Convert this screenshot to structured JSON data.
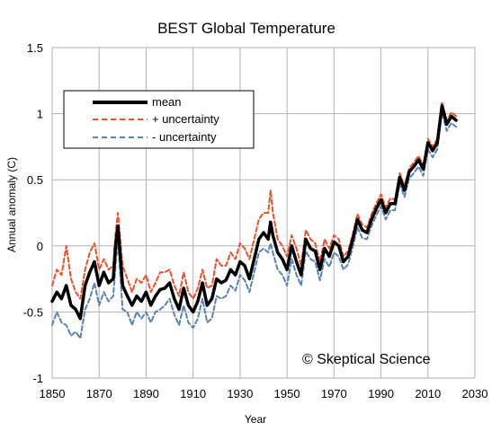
{
  "chart_data": {
    "type": "line",
    "title": "BEST Global Temperature",
    "xlabel": "Year",
    "ylabel": "Annual anomaly (C)",
    "xlim": [
      1850,
      2030
    ],
    "ylim": [
      -1,
      1.5
    ],
    "xticks": [
      1850,
      1870,
      1890,
      1910,
      1930,
      1950,
      1970,
      1990,
      2010,
      2030
    ],
    "yticks": [
      -1,
      -0.5,
      0,
      0.5,
      1,
      1.5
    ],
    "xtick_labels": [
      "1850",
      "1870",
      "1890",
      "1910",
      "1930",
      "1950",
      "1970",
      "1990",
      "2010",
      "2030"
    ],
    "ytick_labels": [
      "-1",
      "-0.5",
      "0",
      "0.5",
      "1",
      "1.5"
    ],
    "grid": true,
    "legend_position": "top-left",
    "annotation": "© Skeptical Science",
    "x": [
      1850,
      1852,
      1854,
      1856,
      1858,
      1860,
      1862,
      1864,
      1866,
      1868,
      1870,
      1872,
      1874,
      1876,
      1877,
      1878,
      1880,
      1882,
      1884,
      1886,
      1888,
      1890,
      1892,
      1894,
      1896,
      1898,
      1900,
      1902,
      1904,
      1906,
      1908,
      1910,
      1912,
      1914,
      1916,
      1918,
      1920,
      1922,
      1924,
      1926,
      1928,
      1930,
      1932,
      1934,
      1936,
      1938,
      1940,
      1942,
      1943,
      1944,
      1946,
      1948,
      1950,
      1952,
      1954,
      1956,
      1958,
      1960,
      1962,
      1964,
      1966,
      1968,
      1970,
      1972,
      1974,
      1976,
      1978,
      1980,
      1982,
      1984,
      1986,
      1988,
      1990,
      1992,
      1994,
      1996,
      1998,
      2000,
      2002,
      2004,
      2006,
      2008,
      2010,
      2012,
      2014,
      2015,
      2016,
      2018,
      2020,
      2022
    ],
    "series": [
      {
        "name": "mean",
        "color": "#000000",
        "dash": "solid",
        "values": [
          -0.42,
          -0.35,
          -0.4,
          -0.3,
          -0.45,
          -0.48,
          -0.55,
          -0.3,
          -0.2,
          -0.12,
          -0.3,
          -0.2,
          -0.28,
          -0.25,
          0.0,
          0.15,
          -0.3,
          -0.38,
          -0.45,
          -0.38,
          -0.42,
          -0.35,
          -0.45,
          -0.38,
          -0.33,
          -0.32,
          -0.28,
          -0.4,
          -0.48,
          -0.32,
          -0.45,
          -0.5,
          -0.42,
          -0.28,
          -0.45,
          -0.4,
          -0.25,
          -0.28,
          -0.26,
          -0.18,
          -0.22,
          -0.12,
          -0.15,
          -0.25,
          -0.1,
          0.05,
          0.1,
          0.05,
          0.18,
          0.08,
          -0.05,
          -0.1,
          -0.18,
          0.0,
          -0.12,
          -0.22,
          0.05,
          -0.02,
          -0.04,
          -0.18,
          -0.02,
          -0.08,
          0.03,
          0.0,
          -0.12,
          -0.08,
          0.05,
          0.2,
          0.12,
          0.1,
          0.2,
          0.28,
          0.35,
          0.25,
          0.32,
          0.32,
          0.52,
          0.42,
          0.56,
          0.6,
          0.65,
          0.58,
          0.78,
          0.72,
          0.78,
          0.92,
          1.06,
          0.92,
          0.98,
          0.95
        ]
      },
      {
        "name": "+ uncertainty",
        "color": "#e8522d",
        "dash": "dashed",
        "values": [
          -0.3,
          -0.18,
          -0.22,
          0.0,
          -0.25,
          -0.35,
          -0.4,
          -0.18,
          -0.05,
          0.02,
          -0.18,
          -0.1,
          -0.18,
          -0.15,
          0.1,
          0.25,
          -0.15,
          -0.25,
          -0.35,
          -0.25,
          -0.28,
          -0.22,
          -0.35,
          -0.28,
          -0.2,
          -0.2,
          -0.18,
          -0.3,
          -0.38,
          -0.2,
          -0.35,
          -0.4,
          -0.32,
          -0.18,
          -0.32,
          -0.3,
          -0.1,
          -0.15,
          -0.15,
          -0.05,
          -0.1,
          0.02,
          -0.02,
          -0.1,
          0.05,
          0.2,
          0.25,
          0.25,
          0.42,
          0.25,
          0.05,
          0.0,
          -0.08,
          0.08,
          -0.02,
          -0.15,
          0.12,
          0.05,
          0.02,
          -0.12,
          0.05,
          -0.02,
          0.08,
          0.05,
          -0.08,
          -0.04,
          0.09,
          0.24,
          0.16,
          0.14,
          0.24,
          0.32,
          0.39,
          0.29,
          0.36,
          0.35,
          0.55,
          0.45,
          0.59,
          0.63,
          0.68,
          0.61,
          0.81,
          0.75,
          0.81,
          0.95,
          1.09,
          0.95,
          1.01,
          0.98
        ]
      },
      {
        "name": "- uncertainty",
        "color": "#5b82b0",
        "dash": "dashed",
        "values": [
          -0.6,
          -0.5,
          -0.58,
          -0.6,
          -0.68,
          -0.65,
          -0.7,
          -0.48,
          -0.4,
          -0.28,
          -0.45,
          -0.35,
          -0.42,
          -0.38,
          -0.15,
          0.05,
          -0.48,
          -0.5,
          -0.6,
          -0.5,
          -0.55,
          -0.5,
          -0.58,
          -0.5,
          -0.48,
          -0.45,
          -0.4,
          -0.52,
          -0.6,
          -0.45,
          -0.58,
          -0.62,
          -0.55,
          -0.4,
          -0.58,
          -0.55,
          -0.38,
          -0.4,
          -0.38,
          -0.3,
          -0.34,
          -0.22,
          -0.26,
          -0.35,
          -0.2,
          -0.05,
          -0.02,
          -0.05,
          0.02,
          -0.05,
          -0.18,
          -0.22,
          -0.3,
          -0.1,
          -0.22,
          -0.3,
          -0.04,
          -0.1,
          -0.12,
          -0.26,
          -0.1,
          -0.16,
          -0.05,
          -0.08,
          -0.18,
          -0.14,
          -0.01,
          0.14,
          0.06,
          0.05,
          0.15,
          0.23,
          0.3,
          0.2,
          0.27,
          0.27,
          0.47,
          0.37,
          0.51,
          0.55,
          0.6,
          0.53,
          0.73,
          0.67,
          0.73,
          0.87,
          1.01,
          0.87,
          0.93,
          0.9
        ]
      }
    ]
  }
}
